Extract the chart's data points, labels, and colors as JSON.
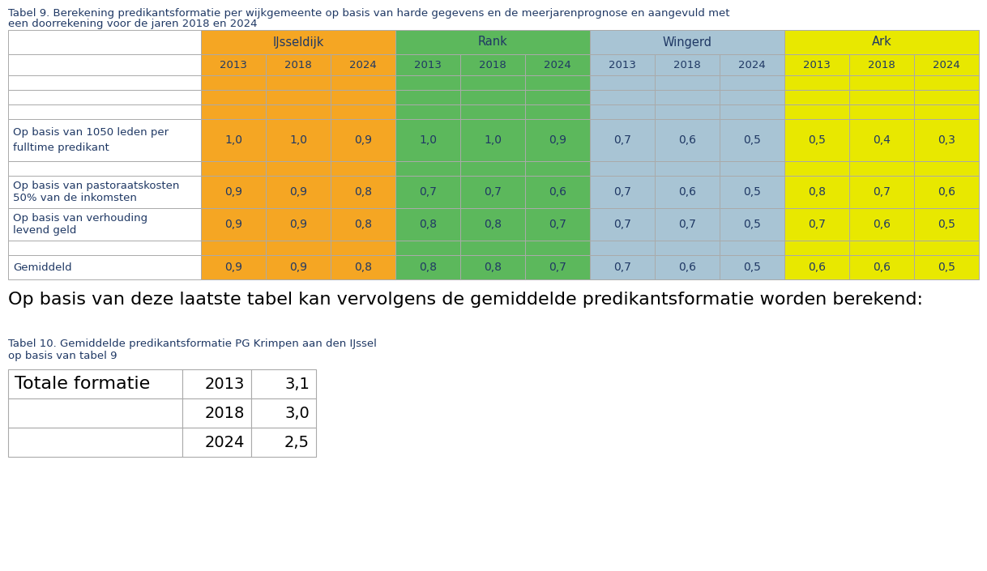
{
  "title9_line1": "Tabel 9. Berekening predikantsformatie per wijkgemeente op basis van harde gegevens en de meerjarenprognose en aangevuld met",
  "title9_line2": "een doorrekening voor de jaren 2018 en 2024",
  "groups": [
    "IJsseldijk",
    "Rank",
    "Wingerd",
    "Ark"
  ],
  "years": [
    "2013",
    "2018",
    "2024"
  ],
  "group_colors": [
    "#F5A623",
    "#5CB85C",
    "#A8C4D4",
    "#E8E800"
  ],
  "row_labels": [
    "",
    "",
    "",
    "Op basis van 1050 leden per\nfulltime predikant",
    "",
    "Op basis van pastoraatskosten\n50% van de inkomsten",
    "Op basis van verhouding\nlevend geld",
    "",
    "Gemiddeld"
  ],
  "table_data": [
    [
      null,
      null,
      null,
      null,
      null,
      null,
      null,
      null,
      null,
      null,
      null,
      null
    ],
    [
      null,
      null,
      null,
      null,
      null,
      null,
      null,
      null,
      null,
      null,
      null,
      null
    ],
    [
      null,
      null,
      null,
      null,
      null,
      null,
      null,
      null,
      null,
      null,
      null,
      null
    ],
    [
      1.0,
      1.0,
      0.9,
      1.0,
      1.0,
      0.9,
      0.7,
      0.6,
      0.5,
      0.5,
      0.4,
      0.3
    ],
    [
      null,
      null,
      null,
      null,
      null,
      null,
      null,
      null,
      null,
      null,
      null,
      null
    ],
    [
      0.9,
      0.9,
      0.8,
      0.7,
      0.7,
      0.6,
      0.7,
      0.6,
      0.5,
      0.8,
      0.7,
      0.6
    ],
    [
      0.9,
      0.9,
      0.8,
      0.8,
      0.8,
      0.7,
      0.7,
      0.7,
      0.5,
      0.7,
      0.6,
      0.5
    ],
    [
      null,
      null,
      null,
      null,
      null,
      null,
      null,
      null,
      null,
      null,
      null,
      null
    ],
    [
      0.9,
      0.9,
      0.8,
      0.8,
      0.8,
      0.7,
      0.7,
      0.6,
      0.5,
      0.6,
      0.6,
      0.5
    ]
  ],
  "middle_text": "Op basis van deze laatste tabel kan vervolgens de gemiddelde predikantsformatie worden berekend:",
  "title10_line1": "Tabel 10. Gemiddelde predikantsformatie PG Krimpen aan den IJssel",
  "title10_line2": "op basis van tabel 9",
  "table2_row_label": "Totale formatie",
  "table2_years": [
    "2013",
    "2018",
    "2024"
  ],
  "table2_values": [
    "3,1",
    "3,0",
    "2,5"
  ],
  "bg_color": "#FFFFFF",
  "text_color": "#000000",
  "title_color": "#1F3864",
  "cell_text_color": "#1F3864"
}
